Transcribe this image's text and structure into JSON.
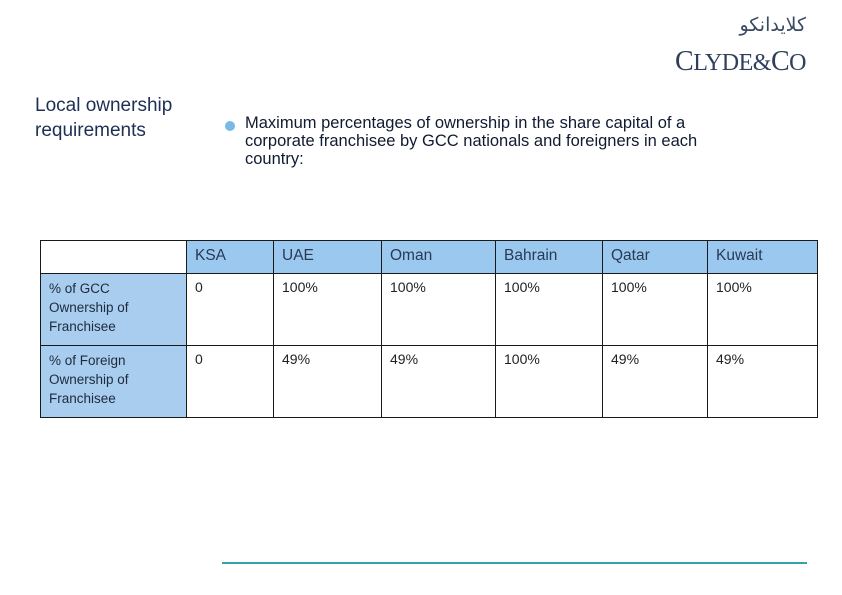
{
  "logo": {
    "arabic": "كلايدانكو",
    "name_c": "C",
    "name_mid": "LYDE&",
    "name_co_c": "C",
    "name_co_o": "O"
  },
  "section_title": "Local ownership requirements",
  "bullet": "Maximum percentages of ownership in the share capital of a corporate franchisee by GCC nationals and foreigners in each country:",
  "table": {
    "headers": [
      "",
      "KSA",
      "UAE",
      "Oman",
      "Bahrain",
      "Qatar",
      "Kuwait"
    ],
    "rows": [
      {
        "label": "% of GCC Ownership of Franchisee",
        "values": [
          "0",
          "100%",
          "100%",
          "100%",
          "100%",
          "100%"
        ]
      },
      {
        "label": "% of Foreign Ownership of Franchisee",
        "values": [
          "0",
          "49%",
          "49%",
          "100%",
          "49%",
          "49%"
        ]
      }
    ]
  },
  "colors": {
    "header_fill": "#9ac8ee",
    "label_fill": "#a8cdee",
    "bullet": "#7ab8e6",
    "footer_line": "#3aa0a8"
  }
}
